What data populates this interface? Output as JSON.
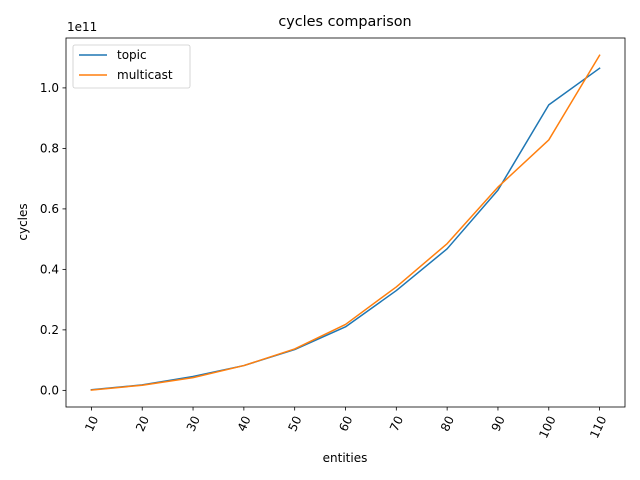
{
  "chart_data": {
    "type": "line",
    "title": "cycles comparison",
    "xlabel": "entities",
    "ylabel": "cycles",
    "y_offset_label": "1e11",
    "y_scale_factor": 100000000000.0,
    "x": [
      10,
      20,
      30,
      40,
      50,
      60,
      70,
      80,
      90,
      100,
      110
    ],
    "x_tick_labels": [
      "10",
      "20",
      "30",
      "40",
      "50",
      "60",
      "70",
      "80",
      "90",
      "100",
      "110"
    ],
    "y_ticks": [
      0.0,
      0.2,
      0.4,
      0.6,
      0.8,
      1.0
    ],
    "y_tick_labels": [
      "0.0",
      "0.2",
      "0.4",
      "0.6",
      "0.8",
      "1.0"
    ],
    "xlim": [
      5,
      115
    ],
    "ylim": [
      -0.055,
      1.165
    ],
    "grid": false,
    "legend_position": "upper-left",
    "series": [
      {
        "name": "topic",
        "color": "#1f77b4",
        "values": [
          0.002,
          0.018,
          0.046,
          0.082,
          0.135,
          0.21,
          0.33,
          0.468,
          0.662,
          0.944,
          1.065
        ]
      },
      {
        "name": "multicast",
        "color": "#ff7f0e",
        "values": [
          0.001,
          0.017,
          0.042,
          0.082,
          0.137,
          0.218,
          0.342,
          0.485,
          0.672,
          0.828,
          1.108
        ]
      }
    ]
  }
}
